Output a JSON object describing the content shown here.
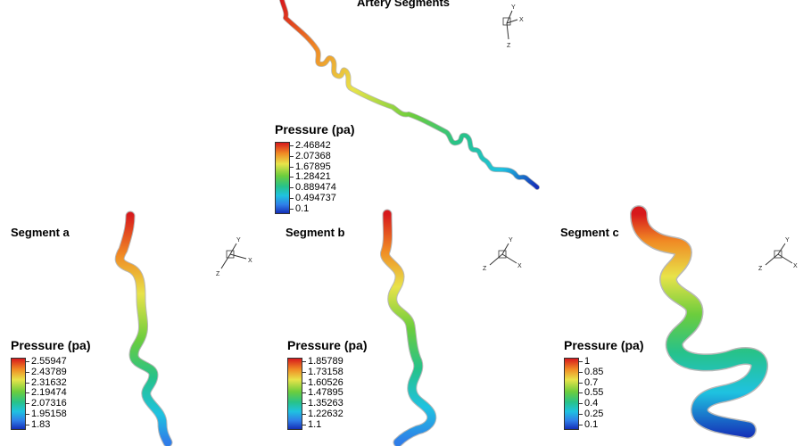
{
  "main_title": "Artery Segments",
  "segments": [
    {
      "title": ""
    },
    {
      "title": "Segment a"
    },
    {
      "title": "Segment b"
    },
    {
      "title": "Segment c"
    }
  ],
  "legends": [
    {
      "title": "Pressure (pa)",
      "labels": [
        "2.46842",
        "2.07368",
        "1.67895",
        "1.28421",
        "0.889474",
        "0.494737",
        "0.1"
      ]
    },
    {
      "title": "Pressure (pa)",
      "labels": [
        "2.55947",
        "2.43789",
        "2.31632",
        "2.19474",
        "2.07316",
        "1.95158",
        "1.83"
      ]
    },
    {
      "title": "Pressure (pa)",
      "labels": [
        "1.85789",
        "1.73158",
        "1.60526",
        "1.47895",
        "1.35263",
        "1.22632",
        "1.1"
      ]
    },
    {
      "title": "Pressure (pa)",
      "labels": [
        "1",
        "0.85",
        "0.7",
        "0.55",
        "0.4",
        "0.25",
        "0.1"
      ]
    }
  ],
  "axis_labels": {
    "x": "X",
    "y": "Y",
    "z": "Z"
  },
  "colors": {
    "high": "#d7191c",
    "mid_high": "#f08a24",
    "mid": "#e8e34a",
    "mid_low": "#6ccd3d",
    "low_mid": "#1fc2e0",
    "low": "#1530b8"
  }
}
